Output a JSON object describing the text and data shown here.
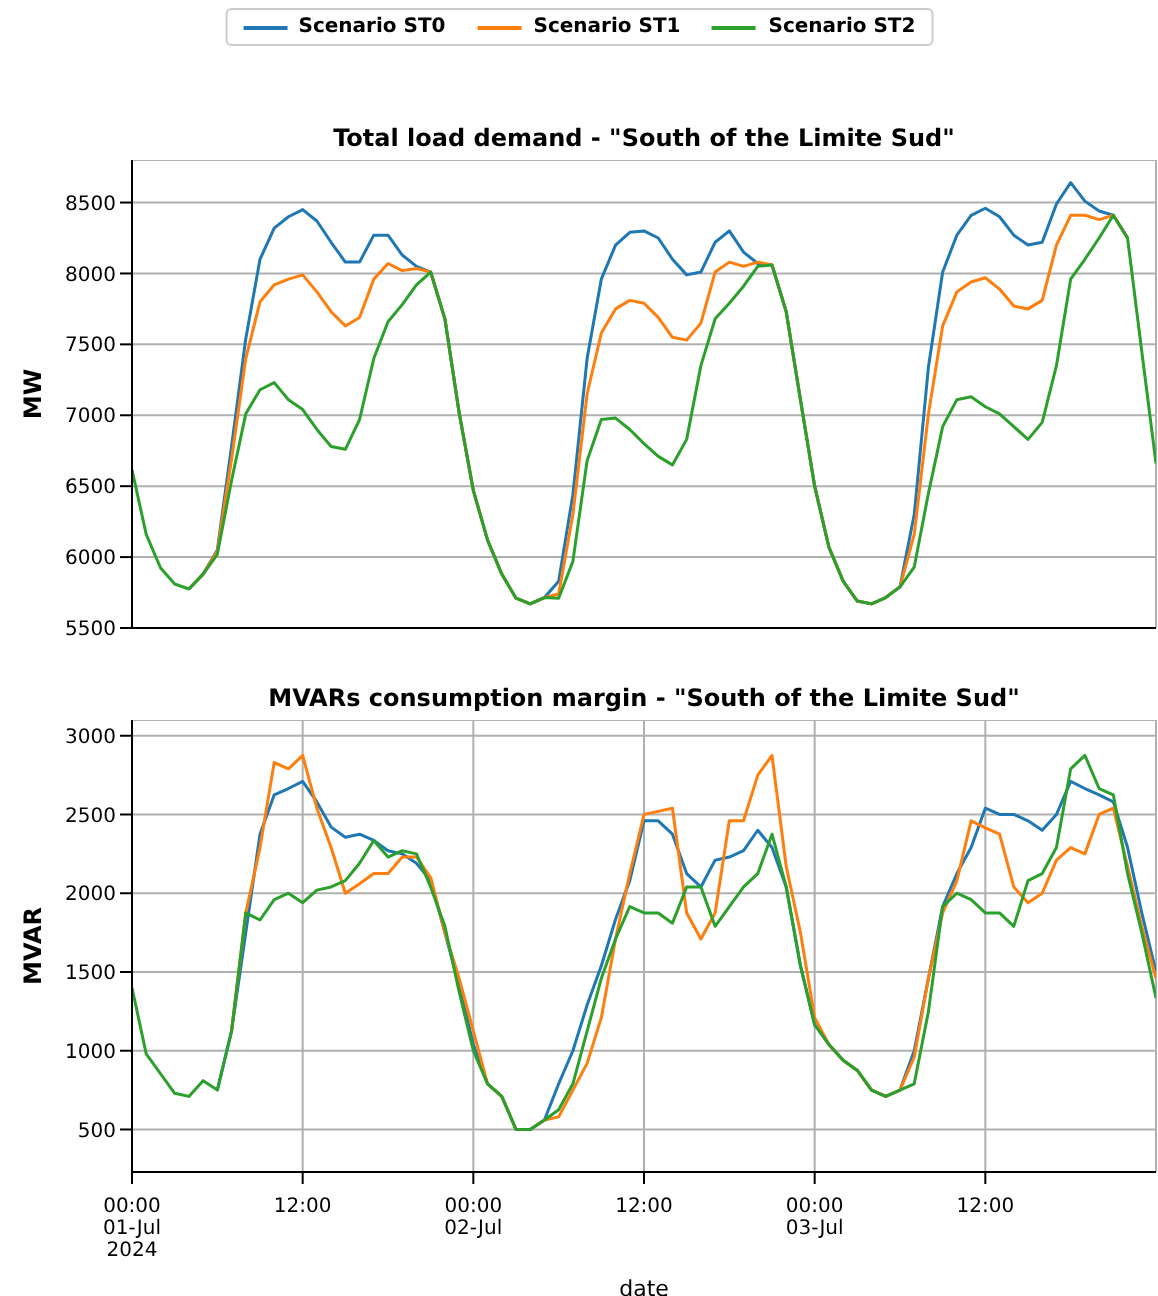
{
  "chart_data": [
    {
      "type": "line",
      "title": "Total load demand - \"South of the Limite Sud\"",
      "ylabel": "MW",
      "x": [
        "2024-07-01T00:00",
        "2024-07-01T01:00",
        "2024-07-01T02:00",
        "2024-07-01T03:00",
        "2024-07-01T04:00",
        "2024-07-01T05:00",
        "2024-07-01T06:00",
        "2024-07-01T07:00",
        "2024-07-01T08:00",
        "2024-07-01T09:00",
        "2024-07-01T10:00",
        "2024-07-01T11:00",
        "2024-07-01T12:00",
        "2024-07-01T13:00",
        "2024-07-01T14:00",
        "2024-07-01T15:00",
        "2024-07-01T16:00",
        "2024-07-01T17:00",
        "2024-07-01T18:00",
        "2024-07-01T19:00",
        "2024-07-01T20:00",
        "2024-07-01T21:00",
        "2024-07-01T22:00",
        "2024-07-01T23:00",
        "2024-07-02T00:00",
        "2024-07-02T01:00",
        "2024-07-02T02:00",
        "2024-07-02T03:00",
        "2024-07-02T04:00",
        "2024-07-02T05:00",
        "2024-07-02T06:00",
        "2024-07-02T07:00",
        "2024-07-02T08:00",
        "2024-07-02T09:00",
        "2024-07-02T10:00",
        "2024-07-02T11:00",
        "2024-07-02T12:00",
        "2024-07-02T13:00",
        "2024-07-02T14:00",
        "2024-07-02T15:00",
        "2024-07-02T16:00",
        "2024-07-02T17:00",
        "2024-07-02T18:00",
        "2024-07-02T19:00",
        "2024-07-02T20:00",
        "2024-07-02T21:00",
        "2024-07-02T22:00",
        "2024-07-02T23:00",
        "2024-07-03T00:00",
        "2024-07-03T01:00",
        "2024-07-03T02:00",
        "2024-07-03T03:00",
        "2024-07-03T04:00",
        "2024-07-03T05:00",
        "2024-07-03T06:00",
        "2024-07-03T07:00",
        "2024-07-03T08:00",
        "2024-07-03T09:00",
        "2024-07-03T10:00",
        "2024-07-03T11:00",
        "2024-07-03T12:00",
        "2024-07-03T13:00",
        "2024-07-03T14:00",
        "2024-07-03T15:00",
        "2024-07-03T16:00",
        "2024-07-03T17:00",
        "2024-07-03T18:00",
        "2024-07-03T19:00",
        "2024-07-03T20:00",
        "2024-07-03T21:00",
        "2024-07-03T22:00",
        "2024-07-03T23:00",
        "2024-07-04T00:00"
      ],
      "xlim": [
        "2024-07-01T00:00",
        "2024-07-04T00:00"
      ],
      "xticks": [
        "2024-07-01T00:00",
        "2024-07-01T12:00",
        "2024-07-02T00:00",
        "2024-07-02T12:00",
        "2024-07-03T00:00",
        "2024-07-03T12:00"
      ],
      "ylim": [
        5500,
        8800
      ],
      "yticks": [
        5500,
        6000,
        6500,
        7000,
        7500,
        8000,
        8500
      ],
      "grid": true,
      "legend": "top",
      "tick_labels": "y",
      "series": [
        {
          "name": "Scenario ST0",
          "color": "#1f77b4",
          "values": [
            null,
            null,
            null,
            null,
            5775,
            5880,
            6050,
            6780,
            7540,
            8100,
            8320,
            8400,
            8450,
            8370,
            8220,
            8080,
            8080,
            8270,
            8270,
            8130,
            8050,
            8010,
            7680,
            7020,
            6470,
            6120,
            5880,
            5710,
            5670,
            5715,
            5830,
            6440,
            7400,
            7960,
            8200,
            8290,
            8300,
            8250,
            8100,
            7990,
            8010,
            8220,
            8300,
            8150,
            8070,
            8060,
            7730,
            7110,
            6500,
            6070,
            5830,
            5690,
            5670,
            5715,
            5790,
            6300,
            7340,
            8010,
            8270,
            8410,
            8460,
            8400,
            8270,
            8200,
            8220,
            8490,
            8640,
            8510,
            8440,
            8410,
            8250,
            null,
            null
          ]
        },
        {
          "name": "Scenario ST1",
          "color": "#ff7f0e",
          "values": [
            null,
            null,
            null,
            null,
            5775,
            5880,
            6040,
            6690,
            7400,
            7800,
            7920,
            7960,
            7990,
            7870,
            7730,
            7630,
            7690,
            7960,
            8070,
            8020,
            8035,
            8010,
            7680,
            7020,
            6470,
            6120,
            5880,
            5710,
            5670,
            5715,
            5740,
            6300,
            7150,
            7580,
            7750,
            7810,
            7790,
            7690,
            7550,
            7530,
            7650,
            8010,
            8080,
            8050,
            8080,
            8060,
            7730,
            7110,
            6500,
            6070,
            5830,
            5690,
            5670,
            5715,
            5790,
            6160,
            7010,
            7630,
            7870,
            7940,
            7970,
            7890,
            7770,
            7750,
            7810,
            8200,
            8410,
            8410,
            8380,
            8410,
            8250,
            null,
            null
          ]
        },
        {
          "name": "Scenario ST2",
          "color": "#2ca02c",
          "values": [
            6615,
            6160,
            5925,
            5810,
            5775,
            5880,
            6020,
            6540,
            7010,
            7180,
            7230,
            7110,
            7040,
            6900,
            6780,
            6760,
            6970,
            7400,
            7660,
            7780,
            7920,
            8010,
            7680,
            7020,
            6470,
            6120,
            5880,
            5710,
            5670,
            5715,
            5710,
            5970,
            6680,
            6970,
            6980,
            6900,
            6800,
            6710,
            6650,
            6830,
            7350,
            7680,
            7790,
            7910,
            8050,
            8060,
            7730,
            7110,
            6500,
            6070,
            5830,
            5690,
            5670,
            5715,
            5790,
            5930,
            6450,
            6920,
            7110,
            7130,
            7060,
            7010,
            6920,
            6830,
            6950,
            7350,
            7960,
            8100,
            8250,
            8410,
            8250,
            7450,
            6660
          ]
        }
      ]
    },
    {
      "type": "line",
      "title": "MVARs consumption margin - \"South of the Limite Sud\"",
      "ylabel": "MVAR",
      "xlabel": "date",
      "x": [
        "2024-07-01T00:00",
        "2024-07-01T01:00",
        "2024-07-01T02:00",
        "2024-07-01T03:00",
        "2024-07-01T04:00",
        "2024-07-01T05:00",
        "2024-07-01T06:00",
        "2024-07-01T07:00",
        "2024-07-01T08:00",
        "2024-07-01T09:00",
        "2024-07-01T10:00",
        "2024-07-01T11:00",
        "2024-07-01T12:00",
        "2024-07-01T13:00",
        "2024-07-01T14:00",
        "2024-07-01T15:00",
        "2024-07-01T16:00",
        "2024-07-01T17:00",
        "2024-07-01T18:00",
        "2024-07-01T19:00",
        "2024-07-01T20:00",
        "2024-07-01T21:00",
        "2024-07-01T22:00",
        "2024-07-01T23:00",
        "2024-07-02T00:00",
        "2024-07-02T01:00",
        "2024-07-02T02:00",
        "2024-07-02T03:00",
        "2024-07-02T04:00",
        "2024-07-02T05:00",
        "2024-07-02T06:00",
        "2024-07-02T07:00",
        "2024-07-02T08:00",
        "2024-07-02T09:00",
        "2024-07-02T10:00",
        "2024-07-02T11:00",
        "2024-07-02T12:00",
        "2024-07-02T13:00",
        "2024-07-02T14:00",
        "2024-07-02T15:00",
        "2024-07-02T16:00",
        "2024-07-02T17:00",
        "2024-07-02T18:00",
        "2024-07-02T19:00",
        "2024-07-02T20:00",
        "2024-07-02T21:00",
        "2024-07-02T22:00",
        "2024-07-02T23:00",
        "2024-07-03T00:00",
        "2024-07-03T01:00",
        "2024-07-03T02:00",
        "2024-07-03T03:00",
        "2024-07-03T04:00",
        "2024-07-03T05:00",
        "2024-07-03T06:00",
        "2024-07-03T07:00",
        "2024-07-03T08:00",
        "2024-07-03T09:00",
        "2024-07-03T10:00",
        "2024-07-03T11:00",
        "2024-07-03T12:00",
        "2024-07-03T13:00",
        "2024-07-03T14:00",
        "2024-07-03T15:00",
        "2024-07-03T16:00",
        "2024-07-03T17:00",
        "2024-07-03T18:00",
        "2024-07-03T19:00",
        "2024-07-03T20:00",
        "2024-07-03T21:00",
        "2024-07-03T22:00",
        "2024-07-03T23:00",
        "2024-07-04T00:00"
      ],
      "xlim": [
        "2024-07-01T00:00",
        "2024-07-04T00:00"
      ],
      "xticks": [
        {
          "value": "2024-07-01T00:00",
          "label": "00:00\n01-Jul\n2024"
        },
        {
          "value": "2024-07-01T12:00",
          "label": "12:00"
        },
        {
          "value": "2024-07-02T00:00",
          "label": "00:00\n02-Jul"
        },
        {
          "value": "2024-07-02T12:00",
          "label": "12:00"
        },
        {
          "value": "2024-07-03T00:00",
          "label": "00:00\n03-Jul"
        },
        {
          "value": "2024-07-03T12:00",
          "label": "12:00"
        }
      ],
      "ylim": [
        230,
        3100
      ],
      "yticks": [
        500,
        1000,
        1500,
        2000,
        2500,
        3000
      ],
      "grid": true,
      "series": [
        {
          "color": "#1f77b4",
          "values": [
            null,
            null,
            null,
            null,
            null,
            null,
            750,
            1125,
            1750,
            2375,
            2625,
            2665,
            2710,
            2580,
            2420,
            2355,
            2375,
            2335,
            2270,
            2250,
            2190,
            2080,
            1750,
            1415,
            1040,
            790,
            710,
            500,
            500,
            560,
            790,
            1000,
            1290,
            1540,
            1835,
            2080,
            2460,
            2460,
            2375,
            2125,
            2040,
            2210,
            2230,
            2270,
            2400,
            2290,
            2040,
            1540,
            1165,
            1040,
            940,
            875,
            750,
            710,
            750,
            1000,
            1460,
            1915,
            2125,
            2290,
            2540,
            2500,
            2500,
            2460,
            2400,
            2500,
            2710,
            2665,
            2625,
            2580,
            2290,
            1875,
            1500
          ]
        },
        {
          "color": "#ff7f0e",
          "values": [
            null,
            null,
            null,
            null,
            null,
            null,
            null,
            1125,
            1875,
            2290,
            2830,
            2790,
            2875,
            2540,
            2290,
            2000,
            2060,
            2125,
            2125,
            2230,
            2230,
            2100,
            1750,
            1460,
            1125,
            790,
            710,
            500,
            500,
            560,
            580,
            750,
            920,
            1210,
            1710,
            2125,
            2500,
            2520,
            2540,
            1875,
            1710,
            1875,
            2460,
            2460,
            2750,
            2875,
            2170,
            1750,
            1210,
            1040,
            940,
            875,
            750,
            710,
            750,
            960,
            1460,
            1875,
            2080,
            2460,
            2415,
            2375,
            2040,
            1940,
            2000,
            2210,
            2290,
            2250,
            2500,
            2540,
            2170,
            1790,
            1460
          ]
        },
        {
          "color": "#2ca02c",
          "values": [
            1400,
            980,
            855,
            730,
            710,
            810,
            750,
            1125,
            1875,
            1830,
            1960,
            2000,
            1940,
            2020,
            2040,
            2080,
            2190,
            2335,
            2230,
            2270,
            2250,
            2040,
            1790,
            1375,
            1000,
            790,
            710,
            500,
            500,
            560,
            625,
            790,
            1125,
            1460,
            1710,
            1915,
            1875,
            1875,
            1810,
            2040,
            2040,
            1790,
            1915,
            2040,
            2125,
            2375,
            2040,
            1540,
            1165,
            1040,
            940,
            875,
            750,
            710,
            750,
            790,
            1250,
            1915,
            2000,
            1960,
            1875,
            1875,
            1790,
            2080,
            2125,
            2290,
            2790,
            2875,
            2665,
            2625,
            2125,
            1750,
            1335
          ]
        }
      ]
    }
  ]
}
